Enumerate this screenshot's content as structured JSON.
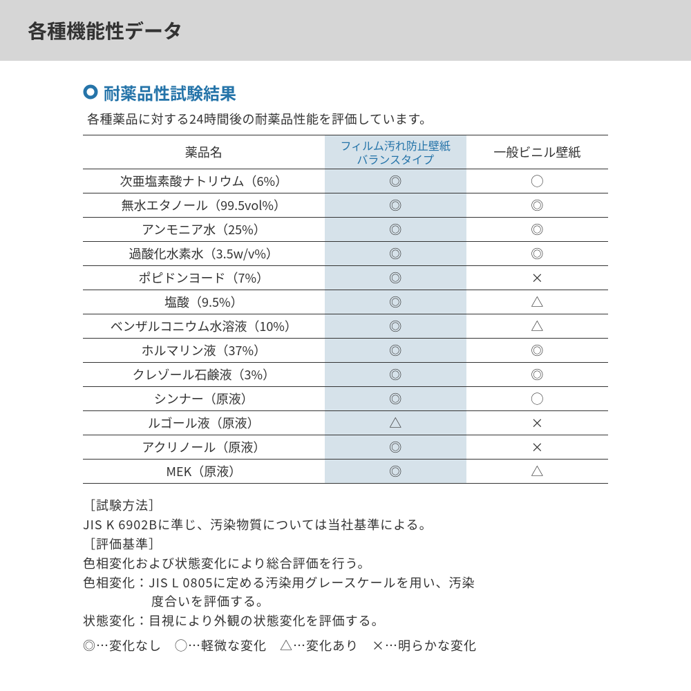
{
  "header": {
    "title": "各種機能性データ"
  },
  "section": {
    "bullet_glyph": "◯",
    "subtitle": "耐薬品性試験結果",
    "intro": "各種薬品に対する24時間後の耐薬品性能を評価しています。"
  },
  "table": {
    "columns": [
      "薬品名",
      "フィルム汚れ防止壁紙\nバランスタイプ",
      "一般ビニル壁紙"
    ],
    "rows": [
      [
        "次亜塩素酸ナトリウム（6%）",
        "◎",
        "◯"
      ],
      [
        "無水エタノール（99.5vol%）",
        "◎",
        "◎"
      ],
      [
        "アンモニア水（25%）",
        "◎",
        "◎"
      ],
      [
        "過酸化水素水（3.5w/v%）",
        "◎",
        "◎"
      ],
      [
        "ポピドンヨード（7%）",
        "◎",
        "×"
      ],
      [
        "塩酸（9.5%）",
        "◎",
        "△"
      ],
      [
        "ベンザルコニウム水溶液（10%）",
        "◎",
        "△"
      ],
      [
        "ホルマリン液（37%）",
        "◎",
        "◎"
      ],
      [
        "クレゾール石鹸液（3%）",
        "◎",
        "◎"
      ],
      [
        "シンナー（原液）",
        "◎",
        "◯"
      ],
      [
        "ルゴール液（原液）",
        "△",
        "×"
      ],
      [
        "アクリノール（原液）",
        "◎",
        "×"
      ],
      [
        "MEK（原液）",
        "◎",
        "△"
      ]
    ],
    "col_widths_pct": [
      46,
      27,
      27
    ],
    "highlight_col_bg": "#d6e2ea",
    "highlight_col_text": "#2574a9",
    "border_color": "#333333"
  },
  "notes": {
    "method_label": "［試験方法］",
    "method_text": "JIS K 6902Bに準じ、汚染物質については当社基準による。",
    "criteria_label": "［評価基準］",
    "criteria_line1": "色相変化および状態変化により総合評価を行う。",
    "criteria_line2a": "色相変化：JIS L 0805に定める汚染用グレースケールを用い、汚染",
    "criteria_line2b": "度合いを評価する。",
    "criteria_line3": "状態変化：目視により外観の状態変化を評価する。"
  },
  "legend": "◎…変化なし　◯…軽微な変化　△…変化あり　×…明らかな変化",
  "colors": {
    "header_bg": "#d6d6d6",
    "accent": "#2574a9",
    "text": "#333333",
    "page_bg": "#ffffff"
  }
}
